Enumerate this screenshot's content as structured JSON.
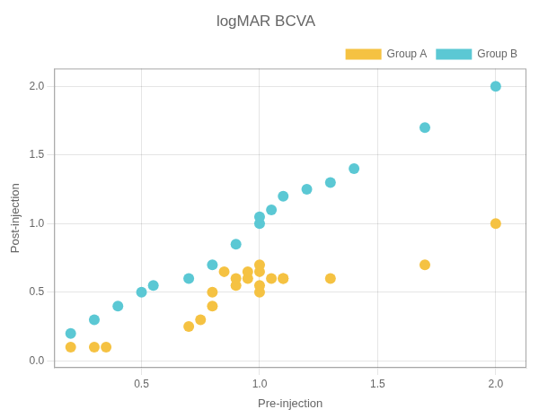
{
  "chart_data": {
    "type": "scatter",
    "title": "logMAR BCVA",
    "xlabel": "Pre-injection",
    "ylabel": "Post-injection",
    "xlim": [
      0.13,
      2.13
    ],
    "ylim": [
      -0.05,
      2.13
    ],
    "xticks": [
      0.5,
      {
        "value": 1.0,
        "label": "1.0"
      },
      1.5,
      {
        "value": 2.0,
        "label": "2.0"
      }
    ],
    "yticks": [
      {
        "value": 0.0,
        "label": "0.0"
      },
      0.5,
      {
        "value": 1.0,
        "label": "1.0"
      },
      1.5,
      {
        "value": 2.0,
        "label": "2.0"
      }
    ],
    "grid": true,
    "legend": "upper right",
    "series": [
      {
        "name": "Group A",
        "color": "#F5C242",
        "x": [
          0.2,
          0.3,
          0.35,
          0.7,
          0.75,
          0.8,
          0.8,
          0.85,
          0.9,
          0.9,
          0.95,
          0.95,
          1.0,
          1.0,
          1.0,
          1.0,
          1.05,
          1.1,
          1.1,
          1.3,
          1.7,
          2.0
        ],
        "y": [
          0.1,
          0.1,
          0.1,
          0.25,
          0.3,
          0.4,
          0.5,
          0.65,
          0.55,
          0.6,
          0.6,
          0.65,
          0.5,
          0.55,
          0.65,
          0.7,
          0.6,
          0.6,
          0.6,
          0.6,
          0.7,
          1.0
        ]
      },
      {
        "name": "Group B",
        "color": "#5BC8D4",
        "x": [
          0.2,
          0.3,
          0.4,
          0.5,
          0.55,
          0.7,
          0.8,
          0.9,
          1.0,
          1.0,
          1.05,
          1.1,
          1.2,
          1.3,
          1.4,
          1.7,
          2.0
        ],
        "y": [
          0.2,
          0.3,
          0.4,
          0.5,
          0.55,
          0.6,
          0.7,
          0.85,
          1.0,
          1.05,
          1.1,
          1.2,
          1.25,
          1.3,
          1.4,
          1.7,
          2.0
        ]
      }
    ]
  }
}
